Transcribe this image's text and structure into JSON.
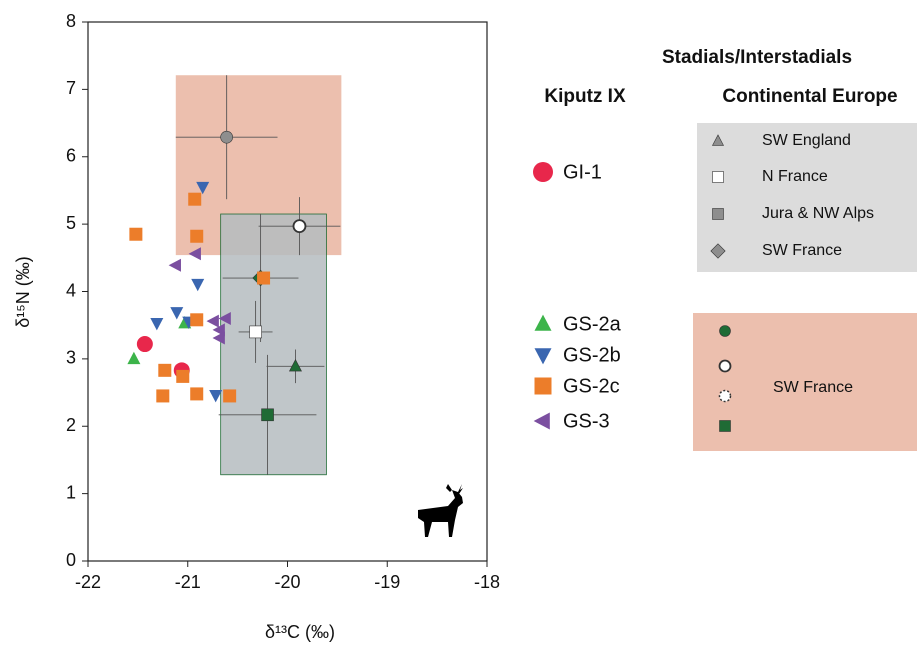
{
  "chart_data": {
    "type": "scatter",
    "x_label": "δ¹³C (‰)",
    "y_label": "δ¹⁵N (‰)",
    "xlim": [
      -22,
      -18
    ],
    "xticks": [
      -22,
      -21,
      -20,
      -19,
      -18
    ],
    "ylim": [
      0,
      8
    ],
    "yticks": [
      0,
      1,
      2,
      3,
      4,
      5,
      6,
      7,
      8
    ],
    "regions": [
      {
        "color": "#ecbfae",
        "xlim": [
          -21.12,
          -19.46
        ],
        "ylim": [
          4.54,
          7.21
        ]
      },
      {
        "color": "#b5bcc0",
        "xlim": [
          -20.67,
          -19.61
        ],
        "ylim": [
          1.28,
          5.15
        ]
      }
    ],
    "series": [
      {
        "name": "GI-1",
        "color": "#e8274b",
        "marker": "circle",
        "x": [
          -21.43,
          -21.06
        ],
        "values": [
          3.22,
          2.83
        ]
      },
      {
        "name": "GS-2a",
        "color": "#3cb44a",
        "marker": "triangle-up",
        "x": [
          -21.54,
          -21.03
        ],
        "values": [
          3.0,
          3.53
        ]
      },
      {
        "name": "GS-2b",
        "color": "#3a66b0",
        "marker": "triangle-down",
        "x": [
          -20.85,
          -20.9,
          -21.11,
          -21.31,
          -20.99,
          -20.72
        ],
        "values": [
          5.55,
          4.11,
          3.69,
          3.53,
          3.55,
          2.46
        ]
      },
      {
        "name": "GS-2c",
        "color": "#ec7d2a",
        "marker": "square",
        "x": [
          -21.52,
          -20.93,
          -20.91,
          -20.24,
          -20.91,
          -21.23,
          -21.05,
          -20.91,
          -21.25,
          -20.58
        ],
        "values": [
          4.85,
          5.37,
          4.82,
          4.2,
          3.58,
          2.83,
          2.74,
          2.48,
          2.45,
          2.45
        ]
      },
      {
        "name": "GS-3",
        "color": "#7b4fa0",
        "marker": "triangle-left",
        "x": [
          -21.12,
          -20.92,
          -20.62,
          -20.74,
          -20.68,
          -20.68
        ],
        "values": [
          4.39,
          4.56,
          3.6,
          3.56,
          3.43,
          3.31
        ]
      }
    ],
    "reference_points": [
      {
        "marker": "circle",
        "color": "#8e8e8e",
        "x": -20.61,
        "xerr": 0.51,
        "y": 6.29,
        "yerr": 0.92
      },
      {
        "marker": "circle",
        "color": "#ffffff",
        "x": -19.88,
        "xerr": 0.41,
        "y": 4.97,
        "yerr": 0.43
      },
      {
        "marker": "diamond",
        "color": "#1f6b35",
        "x": -20.27,
        "xerr": 0.38,
        "y": 4.2,
        "yerr": 0.95
      },
      {
        "marker": "square",
        "color": "#ffffff",
        "x": -20.32,
        "xerr": 0.17,
        "y": 3.4,
        "yerr": 0.46
      },
      {
        "marker": "triangle-up",
        "color": "#1f6b35",
        "x": -19.92,
        "xerr": 0.29,
        "y": 2.89,
        "yerr": 0.25
      },
      {
        "marker": "square",
        "color": "#1f6b35",
        "x": -20.2,
        "xerr": 0.49,
        "y": 2.17,
        "yerr": 0.89
      }
    ],
    "legend": {
      "title": "Stadials/Interstadials",
      "kiputz_title": "Kiputz IX",
      "europe_title": "Continental Europe",
      "europe_entries": [
        {
          "label": "SW England",
          "marker": "triangle-up",
          "color": "#8e8e8e"
        },
        {
          "label": "N France",
          "marker": "square",
          "color": "#ffffff"
        },
        {
          "label": "Jura & NW Alps",
          "marker": "square",
          "color": "#8e8e8e"
        },
        {
          "label": "SW France",
          "marker": "diamond",
          "color": "#8e8e8e"
        }
      ],
      "sw_france_label": "SW France",
      "sw_france_markers": [
        {
          "marker": "circle",
          "color": "#1f6b35"
        },
        {
          "marker": "circle",
          "color": "#ffffff"
        },
        {
          "marker": "circle-dotted",
          "color": "#ffffff"
        },
        {
          "marker": "square",
          "color": "#1f6b35"
        }
      ]
    }
  }
}
